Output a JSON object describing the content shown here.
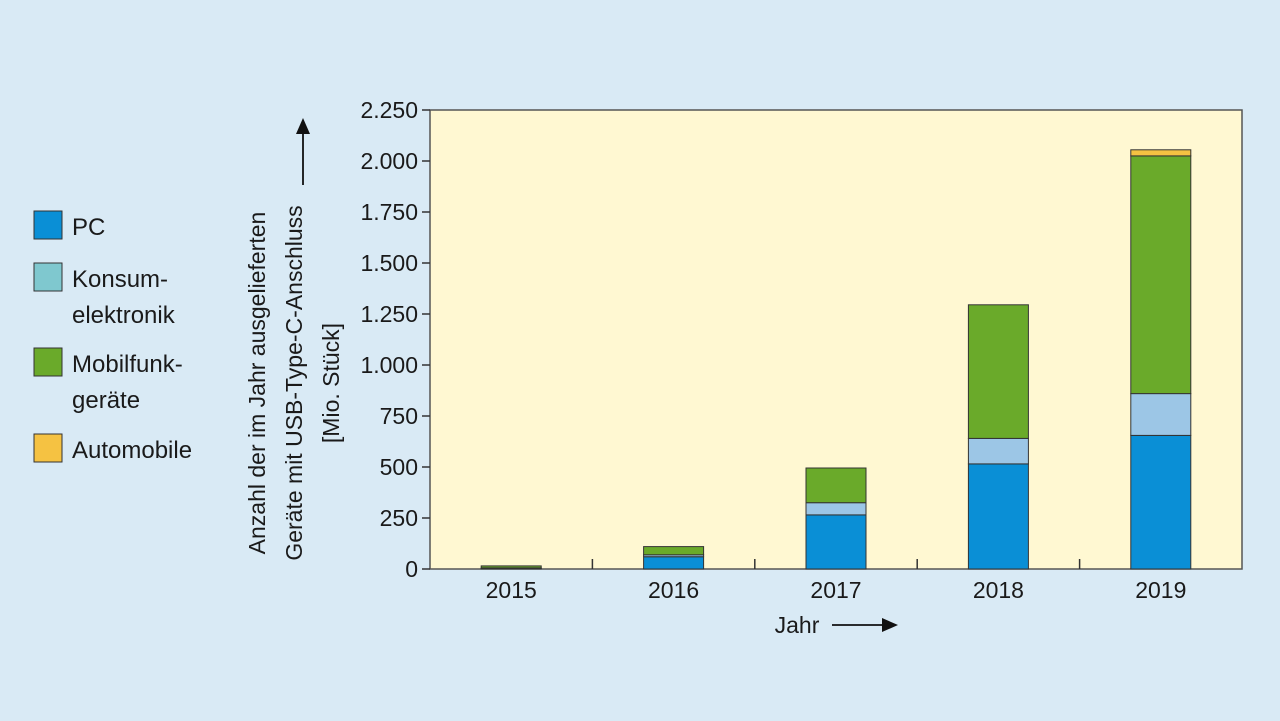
{
  "chart_data": {
    "type": "bar",
    "stacked": true,
    "categories": [
      "2015",
      "2016",
      "2017",
      "2018",
      "2019"
    ],
    "series": [
      {
        "name": "PC",
        "color": "#0a8fd6",
        "values": [
          3,
          60,
          265,
          515,
          655
        ]
      },
      {
        "name": "Konsumelektronik",
        "color": "#9cc6e6",
        "values": [
          2,
          10,
          60,
          125,
          205
        ]
      },
      {
        "name": "Mobilfunkgeräte",
        "color": "#6aaa2a",
        "values": [
          10,
          40,
          170,
          655,
          1165
        ]
      },
      {
        "name": "Automobile",
        "color": "#f5c242",
        "values": [
          0,
          0,
          0,
          0,
          30
        ]
      }
    ],
    "ylabel": [
      "Anzahl der im Jahr ausgelieferten",
      "Geräte mit USB-Type-C-Anschluss",
      "[Mio. Stück]"
    ],
    "xlabel": "Jahr",
    "ylim": [
      0,
      2250
    ],
    "yticks": [
      0,
      250,
      500,
      750,
      1000,
      1250,
      1500,
      1750,
      2000,
      2250
    ],
    "ytick_labels": [
      "0",
      "250",
      "500",
      "750",
      "1.000",
      "1.250",
      "1.500",
      "1.750",
      "2.000",
      "2.250"
    ],
    "legend": {
      "position": "left",
      "entries": [
        {
          "lines": [
            "PC"
          ],
          "color": "#0a8fd6"
        },
        {
          "lines": [
            "Konsum-",
            "elektronik"
          ],
          "color": "#7fc8cf"
        },
        {
          "lines": [
            "Mobilfunk-",
            "geräte"
          ],
          "color": "#6aaa2a"
        },
        {
          "lines": [
            "Automobile"
          ],
          "color": "#f5c242"
        }
      ]
    },
    "plot_background": "#fff8d2",
    "grid": false
  }
}
